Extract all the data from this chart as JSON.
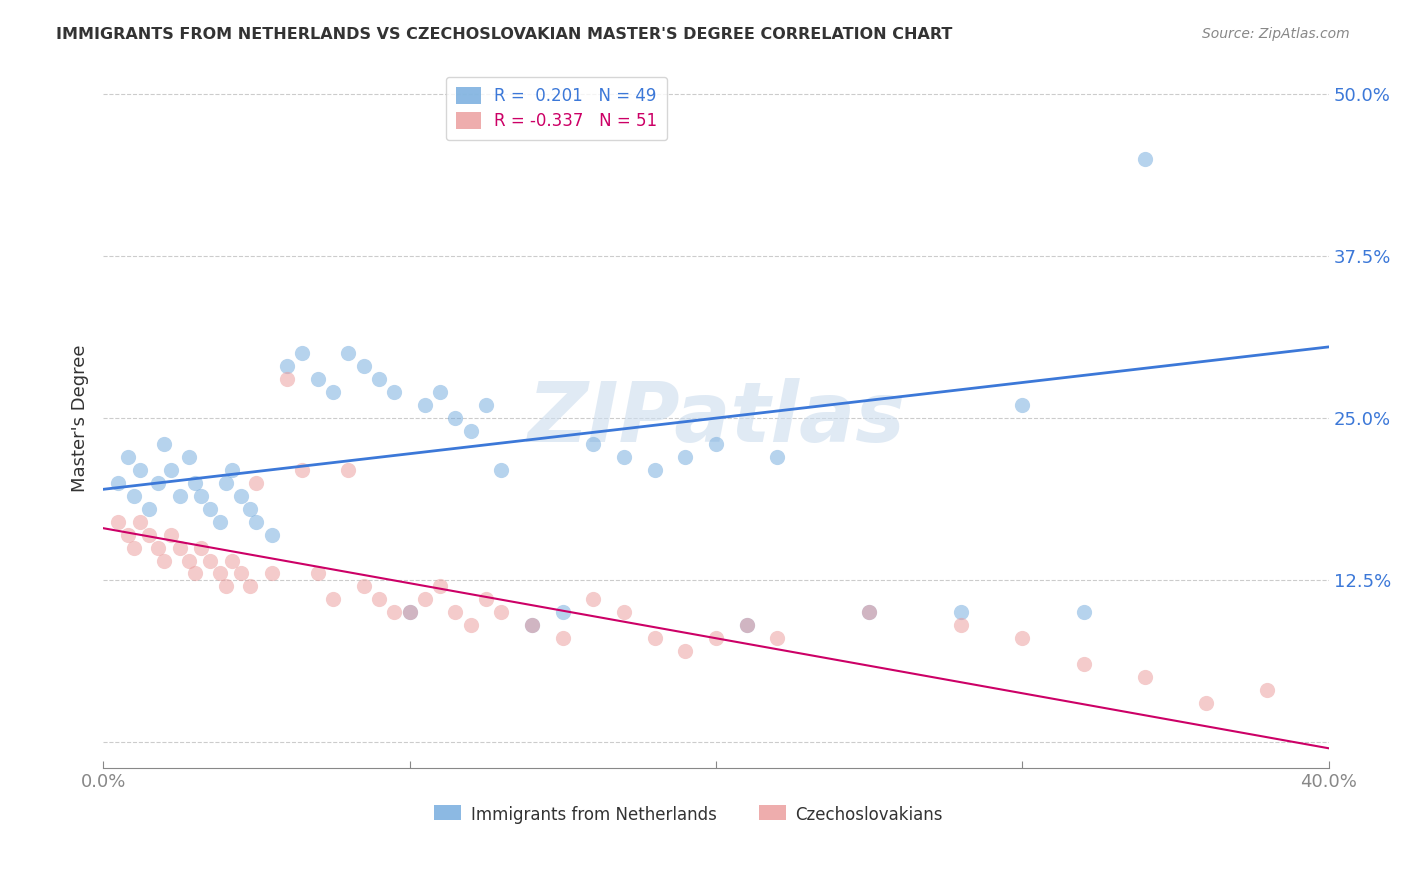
{
  "title": "IMMIGRANTS FROM NETHERLANDS VS CZECHOSLOVAKIAN MASTER'S DEGREE CORRELATION CHART",
  "source": "Source: ZipAtlas.com",
  "ylabel": "Master's Degree",
  "x_min": 0.0,
  "x_max": 0.4,
  "y_min": -0.02,
  "y_max": 0.52,
  "y_ticks": [
    0.0,
    0.125,
    0.25,
    0.375,
    0.5
  ],
  "x_ticks": [
    0.0,
    0.1,
    0.2,
    0.3,
    0.4
  ],
  "blue_scatter_x": [
    0.005,
    0.008,
    0.01,
    0.012,
    0.015,
    0.018,
    0.02,
    0.022,
    0.025,
    0.028,
    0.03,
    0.032,
    0.035,
    0.038,
    0.04,
    0.042,
    0.045,
    0.048,
    0.05,
    0.055,
    0.06,
    0.065,
    0.07,
    0.075,
    0.08,
    0.085,
    0.09,
    0.095,
    0.1,
    0.105,
    0.11,
    0.115,
    0.12,
    0.125,
    0.13,
    0.14,
    0.15,
    0.16,
    0.17,
    0.18,
    0.19,
    0.2,
    0.21,
    0.22,
    0.25,
    0.28,
    0.3,
    0.32,
    0.34
  ],
  "blue_scatter_y": [
    0.2,
    0.22,
    0.19,
    0.21,
    0.18,
    0.2,
    0.23,
    0.21,
    0.19,
    0.22,
    0.2,
    0.19,
    0.18,
    0.17,
    0.2,
    0.21,
    0.19,
    0.18,
    0.17,
    0.16,
    0.29,
    0.3,
    0.28,
    0.27,
    0.3,
    0.29,
    0.28,
    0.27,
    0.1,
    0.26,
    0.27,
    0.25,
    0.24,
    0.26,
    0.21,
    0.09,
    0.1,
    0.23,
    0.22,
    0.21,
    0.22,
    0.23,
    0.09,
    0.22,
    0.1,
    0.1,
    0.26,
    0.1,
    0.45
  ],
  "pink_scatter_x": [
    0.005,
    0.008,
    0.01,
    0.012,
    0.015,
    0.018,
    0.02,
    0.022,
    0.025,
    0.028,
    0.03,
    0.032,
    0.035,
    0.038,
    0.04,
    0.042,
    0.045,
    0.048,
    0.05,
    0.055,
    0.06,
    0.065,
    0.07,
    0.075,
    0.08,
    0.085,
    0.09,
    0.095,
    0.1,
    0.105,
    0.11,
    0.115,
    0.12,
    0.125,
    0.13,
    0.14,
    0.15,
    0.16,
    0.17,
    0.18,
    0.19,
    0.2,
    0.21,
    0.22,
    0.25,
    0.28,
    0.3,
    0.32,
    0.34,
    0.36,
    0.38
  ],
  "pink_scatter_y": [
    0.17,
    0.16,
    0.15,
    0.17,
    0.16,
    0.15,
    0.14,
    0.16,
    0.15,
    0.14,
    0.13,
    0.15,
    0.14,
    0.13,
    0.12,
    0.14,
    0.13,
    0.12,
    0.2,
    0.13,
    0.28,
    0.21,
    0.13,
    0.11,
    0.21,
    0.12,
    0.11,
    0.1,
    0.1,
    0.11,
    0.12,
    0.1,
    0.09,
    0.11,
    0.1,
    0.09,
    0.08,
    0.11,
    0.1,
    0.08,
    0.07,
    0.08,
    0.09,
    0.08,
    0.1,
    0.09,
    0.08,
    0.06,
    0.05,
    0.03,
    0.04
  ],
  "blue_line_x": [
    0.0,
    0.4
  ],
  "blue_line_y": [
    0.195,
    0.305
  ],
  "pink_line_x": [
    0.0,
    0.4
  ],
  "pink_line_y": [
    0.165,
    -0.005
  ],
  "scatter_size": 120,
  "scatter_alpha": 0.5,
  "blue_color": "#6fa8dc",
  "pink_color": "#ea9999",
  "blue_line_color": "#3c78d8",
  "pink_line_color": "#cc0066",
  "grid_color": "#cccccc",
  "background_color": "#ffffff",
  "watermark": "ZIPatlas",
  "watermark_color": "#ccddee",
  "watermark_fontsize": 60,
  "legend_blue_text": "R =  0.201   N = 49",
  "legend_pink_text": "R = -0.337   N = 51",
  "bottom_label_blue": "Immigrants from Netherlands",
  "bottom_label_pink": "Czechoslovakians"
}
